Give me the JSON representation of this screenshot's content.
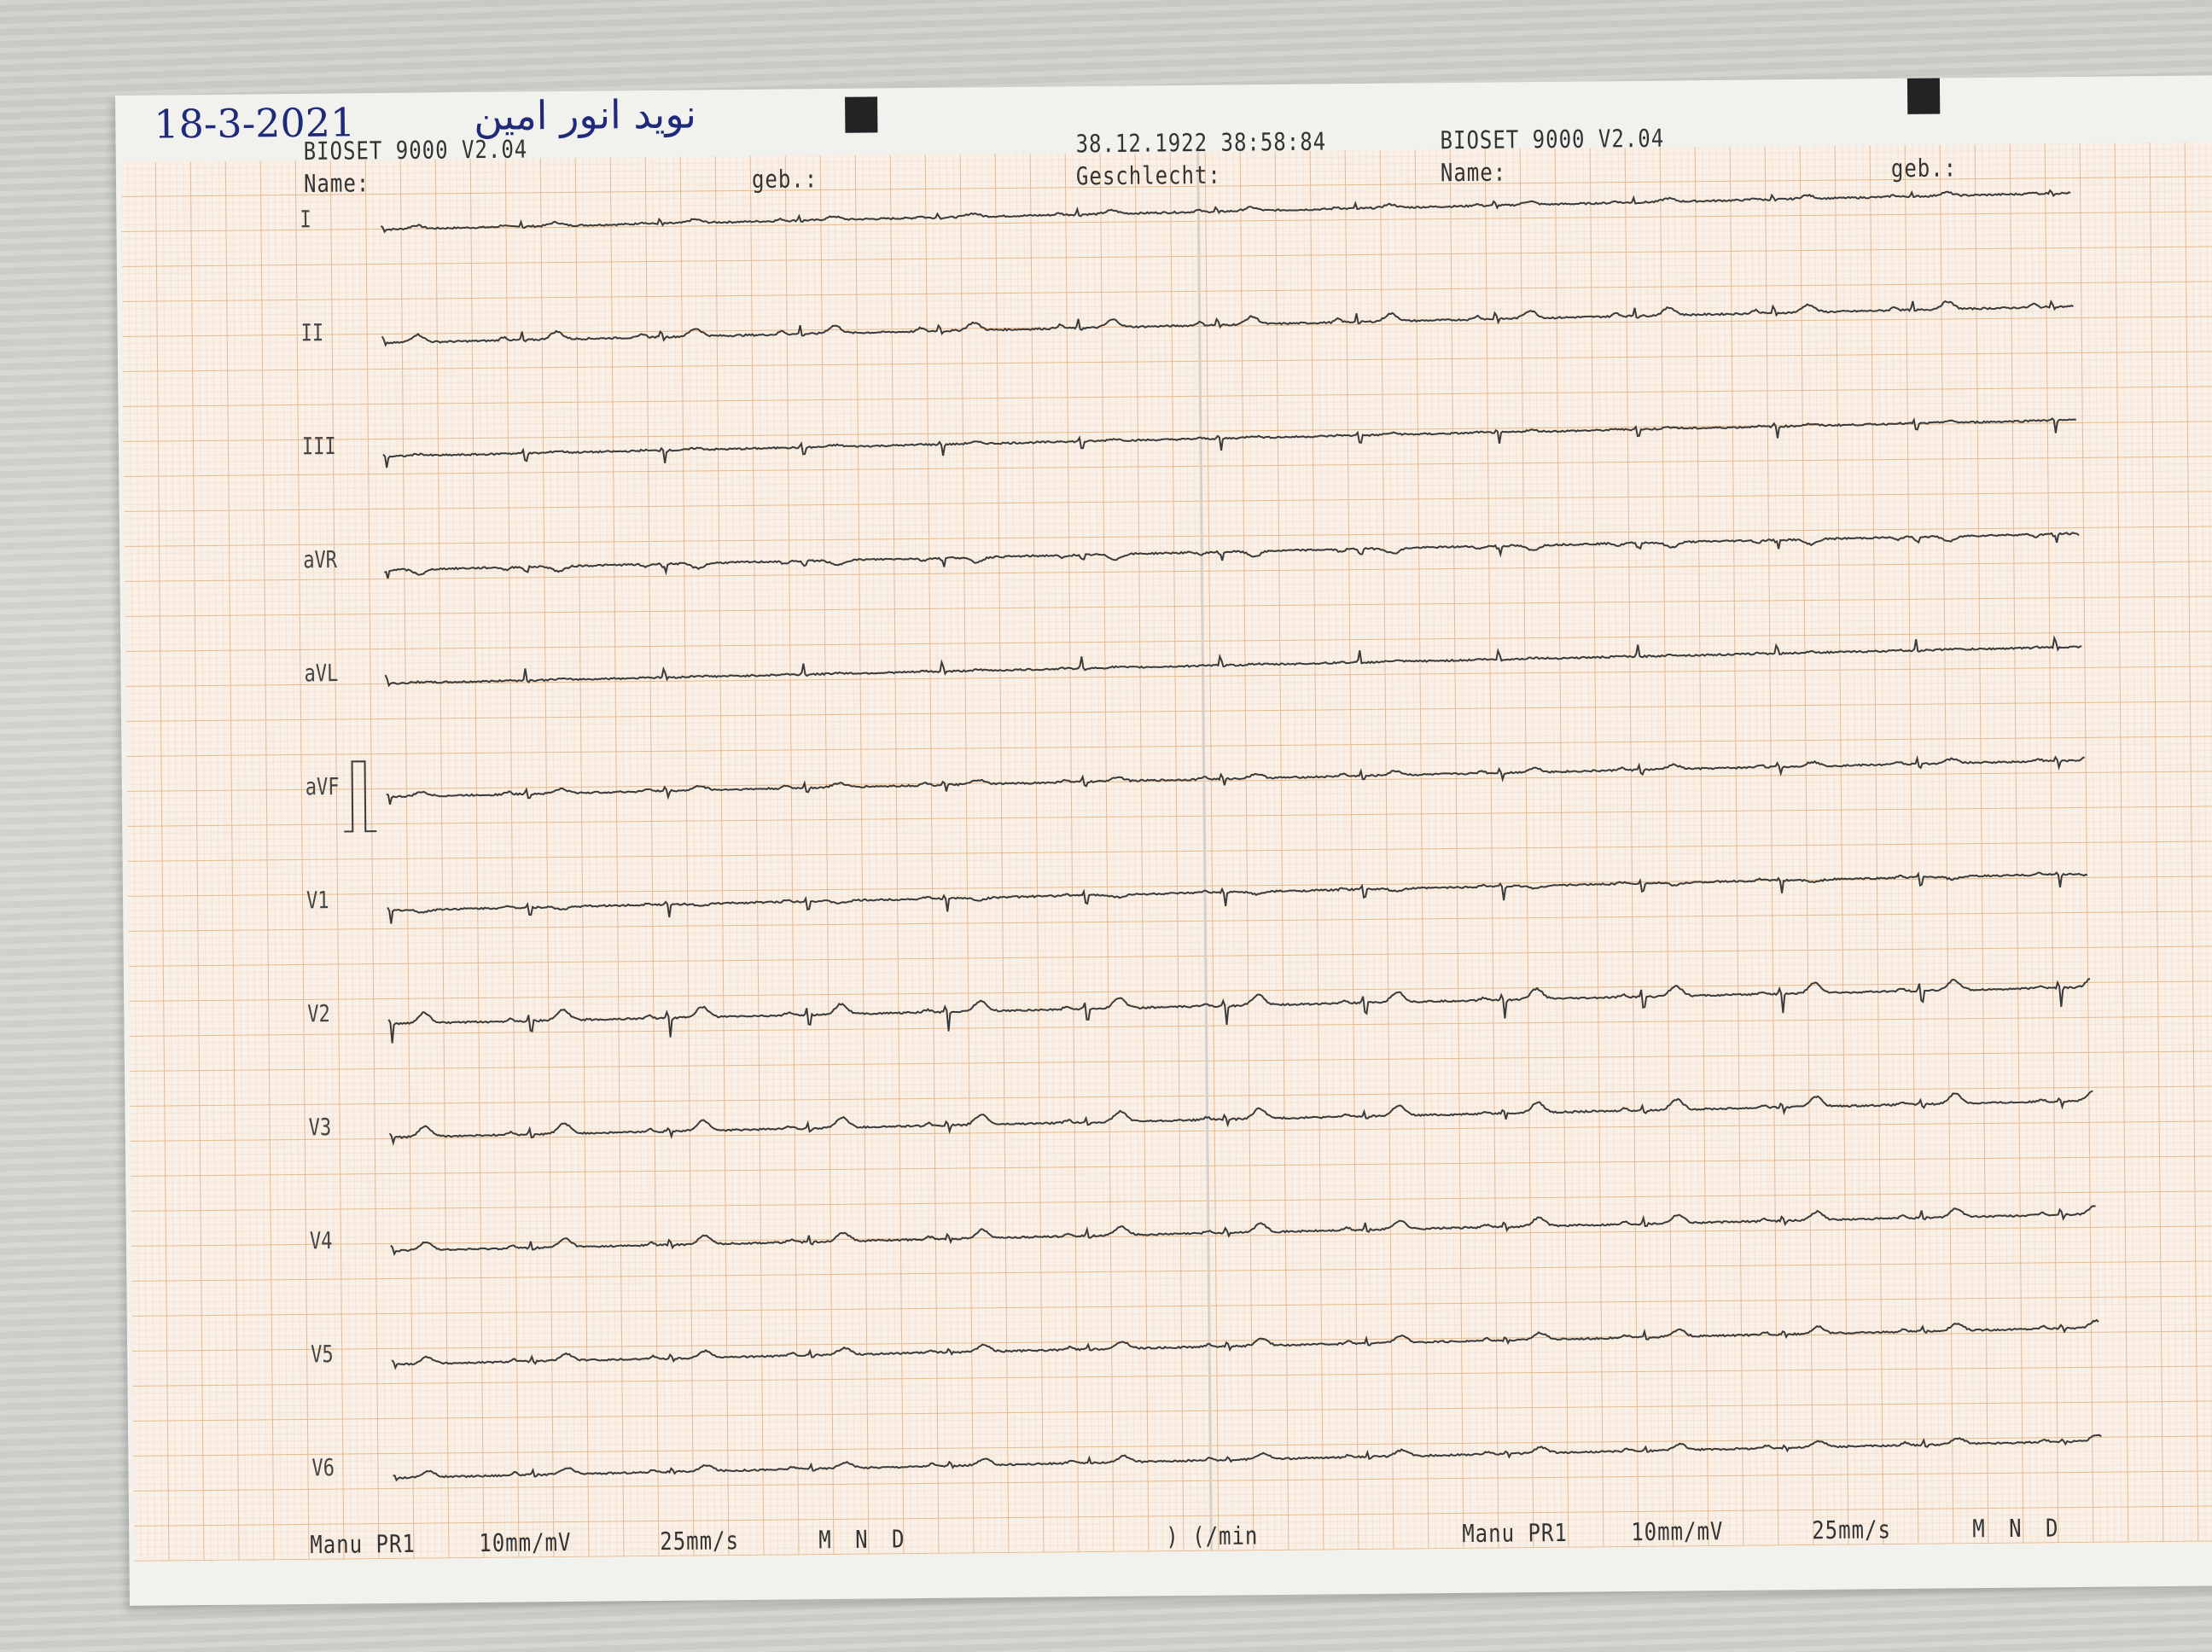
{
  "handwritten": {
    "date": "18-3-2021",
    "patient_name": "نوید انور امین"
  },
  "header_left": {
    "device": "BIOSET 9000 V2.04",
    "name_label": "Name:",
    "dob_label": "geb.:",
    "datetime": "38.12.1922 38:58:84",
    "sex_label": "Geschlecht:"
  },
  "header_right": {
    "device": "BIOSET 9000 V2.04",
    "name_label": "Name:",
    "dob_label": "geb.:"
  },
  "leads": [
    "I",
    "II",
    "III",
    "aVR",
    "aVL",
    "aVF",
    "V1",
    "V2",
    "V3",
    "V4",
    "V5",
    "V6"
  ],
  "footer_left": {
    "mode": "Manu PR1",
    "gain": "10mm/mV",
    "speed": "25mm/s",
    "filters": "M N D",
    "rate": ") (/min"
  },
  "footer_right": {
    "mode": "Manu PR1",
    "gain": "10mm/mV",
    "speed": "25mm/s",
    "filters": "M N D"
  },
  "colors": {
    "grid_major": "#e9b98a",
    "grid_minor": "#f3d7bb",
    "paper": "#f8efe6",
    "trace": "#3a3a3a",
    "ink": "#1f2a7a"
  }
}
